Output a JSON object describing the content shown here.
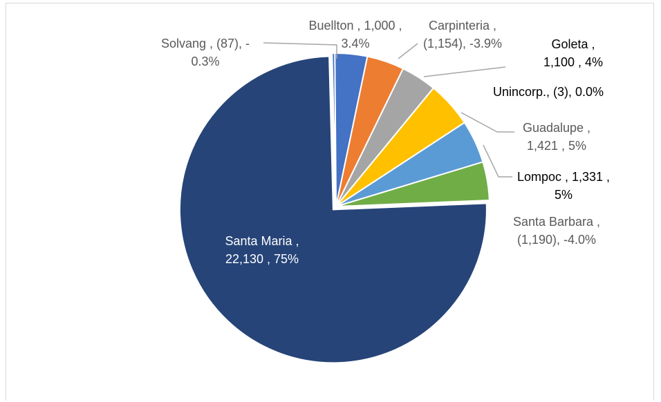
{
  "chart_data": {
    "type": "pie",
    "title": "",
    "legend": "none",
    "slices": [
      {
        "name": "Solvang",
        "value": 87,
        "display_value": "(87)",
        "display_percent": "-0.3%",
        "color": "#4472c4",
        "label_color": "#595959",
        "label_lines": [
          "Solvang , (87), -",
          "0.3%"
        ]
      },
      {
        "name": "Buellton",
        "value": 1000,
        "display_value": "1,000",
        "display_percent": "3.4%",
        "color": "#4472c4",
        "label_color": "#595959",
        "label_lines": [
          "Buellton ,  1,000 ,",
          "3.4%"
        ]
      },
      {
        "name": "Carpinteria",
        "value": 1154,
        "display_value": "(1,154)",
        "display_percent": "-3.9%",
        "color": "#ed7d31",
        "label_color": "#595959",
        "label_lines": [
          "Carpinteria ,",
          "(1,154), -3.9%"
        ]
      },
      {
        "name": "Goleta",
        "value": 1100,
        "display_value": "1,100",
        "display_percent": "4%",
        "color": "#a5a5a5",
        "label_color": "#000000",
        "label_lines": [
          "Goleta ,",
          "1,100 , 4%"
        ]
      },
      {
        "name": "Unincorp.",
        "value": 3,
        "display_value": "(3)",
        "display_percent": "0.0%",
        "color": "#a5a5a5",
        "label_color": "#000000",
        "label_lines": [
          "Unincorp., (3), 0.0%"
        ]
      },
      {
        "name": "Guadalupe",
        "value": 1421,
        "display_value": "1,421",
        "display_percent": "5%",
        "color": "#ffc000",
        "label_color": "#595959",
        "label_lines": [
          "Guadalupe ,",
          "1,421 , 5%"
        ]
      },
      {
        "name": "Lompoc",
        "value": 1331,
        "display_value": "1,331",
        "display_percent": "5%",
        "color": "#5b9bd5",
        "label_color": "#000000",
        "label_lines": [
          "Lompoc ,  1,331 ,",
          "5%"
        ]
      },
      {
        "name": "Santa Barbara",
        "value": 1190,
        "display_value": "(1,190)",
        "display_percent": "-4.0%",
        "color": "#70ad47",
        "label_color": "#595959",
        "label_lines": [
          "Santa Barbara ,",
          "(1,190), -4.0%"
        ]
      },
      {
        "name": "Santa Maria",
        "value": 22130,
        "display_value": "22,130",
        "display_percent": "75%",
        "color": "#264478",
        "label_color": "#ffffff",
        "label_lines": [
          "Santa Maria ,",
          "22,130 , 75%"
        ]
      }
    ]
  }
}
